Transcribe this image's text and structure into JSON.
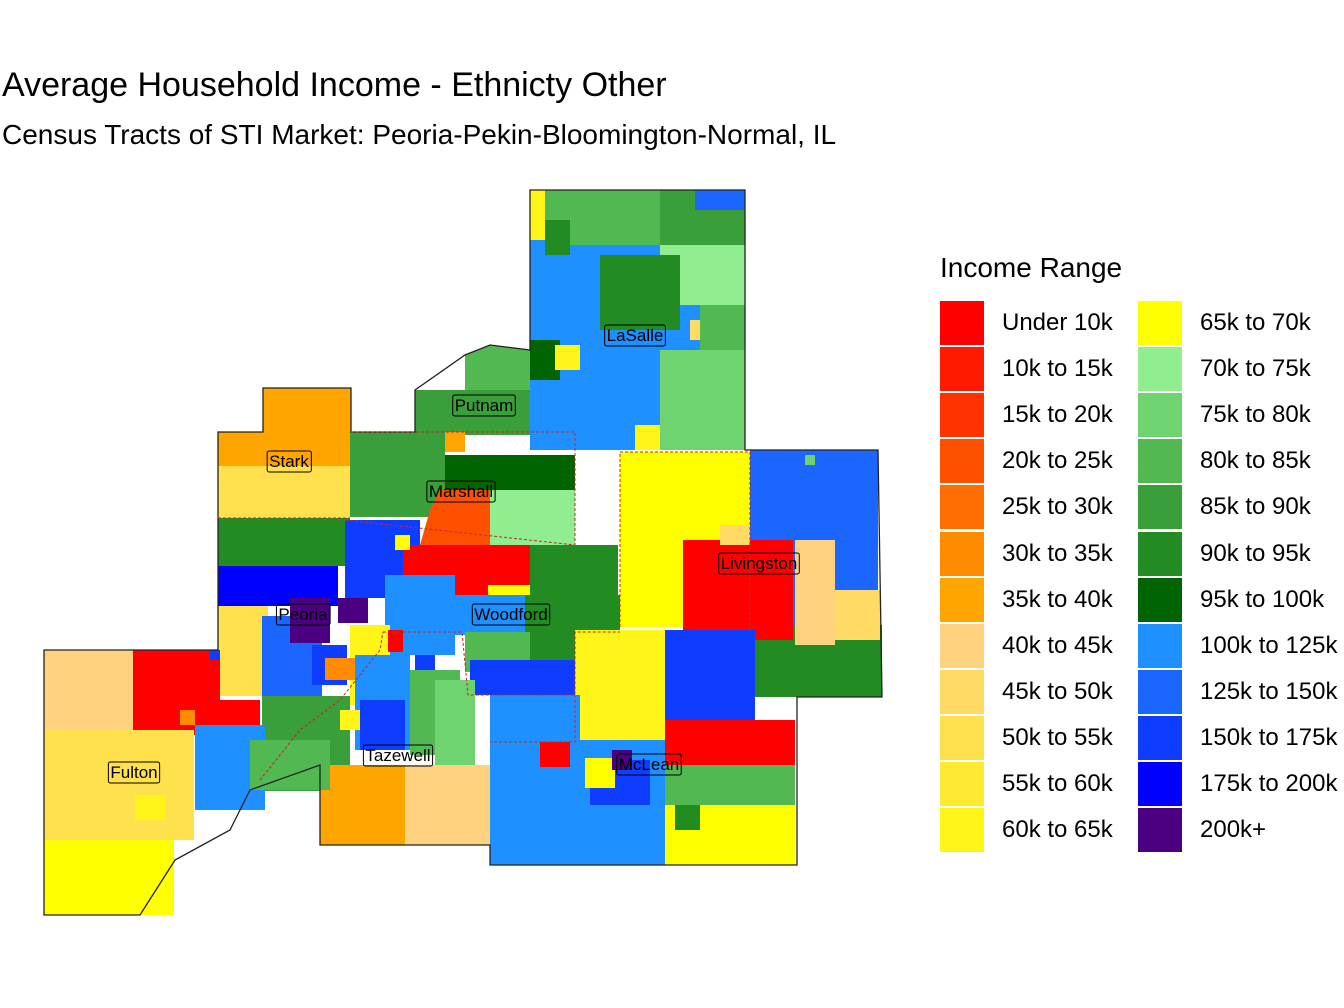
{
  "title": "Average Household Income - Ethnicty Other",
  "subtitle": "Census Tracts of STI Market: Peoria-Pekin-Bloomington-Normal, IL",
  "legend": {
    "title": "Income Range",
    "items": [
      {
        "label": "Under 10k",
        "color": "#FF0000"
      },
      {
        "label": "10k to 15k",
        "color": "#FF1A00"
      },
      {
        "label": "15k to 20k",
        "color": "#FF3300"
      },
      {
        "label": "20k to 25k",
        "color": "#FF5000"
      },
      {
        "label": "25k to 30k",
        "color": "#FF6E00"
      },
      {
        "label": "30k to 35k",
        "color": "#FF8C00"
      },
      {
        "label": "35k to 40k",
        "color": "#FFA500"
      },
      {
        "label": "40k to 45k",
        "color": "#FFD27F"
      },
      {
        "label": "45k to 50k",
        "color": "#FFDB66"
      },
      {
        "label": "50k to 55k",
        "color": "#FFE14D"
      },
      {
        "label": "55k to 60k",
        "color": "#FFEA33"
      },
      {
        "label": "60k to 65k",
        "color": "#FFF519"
      },
      {
        "label": "65k to 70k",
        "color": "#FFFF00"
      },
      {
        "label": "70k to 75k",
        "color": "#90EE90"
      },
      {
        "label": "75k to 80k",
        "color": "#6FD46F"
      },
      {
        "label": "80k to 85k",
        "color": "#52B852"
      },
      {
        "label": "85k to 90k",
        "color": "#3A9E3A"
      },
      {
        "label": "90k to 95k",
        "color": "#228B22"
      },
      {
        "label": "95k to 100k",
        "color": "#006400"
      },
      {
        "label": "100k to 125k",
        "color": "#1E90FF"
      },
      {
        "label": "125k to 150k",
        "color": "#1A66FF"
      },
      {
        "label": "150k to 175k",
        "color": "#0F3DFF"
      },
      {
        "label": "175k to 200k",
        "color": "#0000FF"
      },
      {
        "label": "200k+",
        "color": "#4B0082"
      }
    ]
  },
  "counties": {
    "lasalle": "LaSalle",
    "putnam": "Putnam",
    "stark": "Stark",
    "marshall": "Marshall",
    "livingston": "Livingston",
    "peoria": "Peoria",
    "woodford": "Woodford",
    "fulton": "Fulton",
    "tazewell": "Tazewell",
    "mclean": "McLean"
  }
}
